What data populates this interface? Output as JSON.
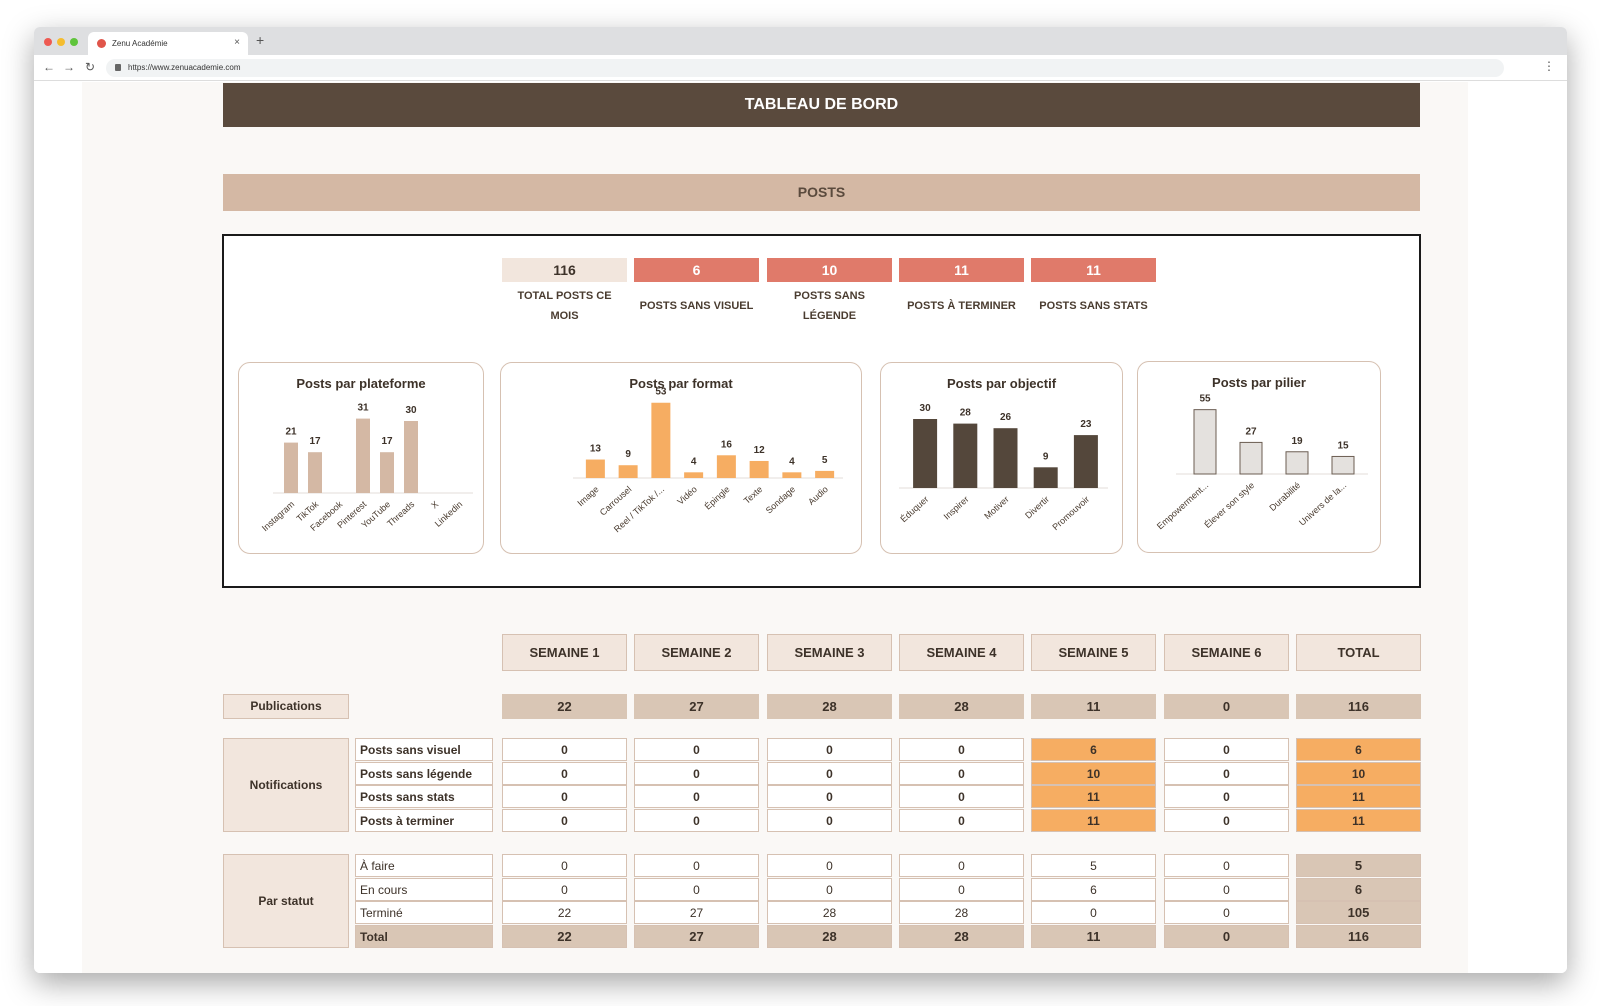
{
  "browser": {
    "tab_title": "Zenu Académie",
    "url": "https://www.zenuacademie.com"
  },
  "header": {
    "title": "TABLEAU DE BORD",
    "section": "POSTS"
  },
  "kpis": [
    {
      "value": "116",
      "label": "TOTAL POSTS CE MOIS",
      "color": "#f2e6dd",
      "text_color": "#3d3229"
    },
    {
      "value": "6",
      "label": "POSTS SANS VISUEL",
      "color": "#e07a6a",
      "text_color": "#ffffff"
    },
    {
      "value": "10",
      "label": "POSTS SANS LÉGENDE",
      "color": "#e07a6a",
      "text_color": "#ffffff"
    },
    {
      "value": "11",
      "label": "POSTS À TERMINER",
      "color": "#e07a6a",
      "text_color": "#ffffff"
    },
    {
      "value": "11",
      "label": "POSTS SANS STATS",
      "color": "#e07a6a",
      "text_color": "#ffffff"
    }
  ],
  "chart_data": [
    {
      "type": "bar",
      "title": "Posts par plateforme",
      "color": "#d4b8a4",
      "categories": [
        "Instagram",
        "TikTok",
        "Facebook",
        "Pinterest",
        "YouTube",
        "Threads",
        "X",
        "Linkedin"
      ],
      "values": [
        21,
        17,
        null,
        31,
        17,
        30,
        null,
        null
      ]
    },
    {
      "type": "bar",
      "title": "Posts par format",
      "color": "#f6ad62",
      "categories": [
        "Image",
        "Carrousel",
        "Reel / TikTok /...",
        "Vidéo",
        "Épingle",
        "Texte",
        "Sondage",
        "Audio"
      ],
      "values": [
        13,
        9,
        53,
        4,
        16,
        12,
        4,
        5
      ]
    },
    {
      "type": "bar",
      "title": "Posts par objectif",
      "color": "#54473b",
      "categories": [
        "Éduquer",
        "Inspirer",
        "Motiver",
        "Divertir",
        "Promouvoir"
      ],
      "values": [
        30,
        28,
        26,
        9,
        23
      ]
    },
    {
      "type": "bar",
      "title": "Posts par pilier",
      "color": "#e4e1de",
      "categories": [
        "Empowerment...",
        "Élever son style",
        "Durabilité",
        "Univers de la..."
      ],
      "values": [
        55,
        27,
        19,
        15
      ]
    }
  ],
  "table": {
    "weeks": [
      "SEMAINE 1",
      "SEMAINE 2",
      "SEMAINE 3",
      "SEMAINE 4",
      "SEMAINE 5",
      "SEMAINE 6",
      "TOTAL"
    ],
    "publications_label": "Publications",
    "publications": [
      "22",
      "27",
      "28",
      "28",
      "11",
      "0",
      "116"
    ],
    "notifications_label": "Notifications",
    "notifications": [
      {
        "label": "Posts sans visuel",
        "values": [
          "0",
          "0",
          "0",
          "0",
          "6",
          "0",
          "6"
        ]
      },
      {
        "label": "Posts sans légende",
        "values": [
          "0",
          "0",
          "0",
          "0",
          "10",
          "0",
          "10"
        ]
      },
      {
        "label": "Posts sans stats",
        "values": [
          "0",
          "0",
          "0",
          "0",
          "11",
          "0",
          "11"
        ]
      },
      {
        "label": "Posts à terminer",
        "values": [
          "0",
          "0",
          "0",
          "0",
          "11",
          "0",
          "11"
        ]
      }
    ],
    "status_label": "Par statut",
    "status": [
      {
        "label": "À faire",
        "values": [
          "0",
          "0",
          "0",
          "0",
          "5",
          "0",
          "5"
        ]
      },
      {
        "label": "En cours",
        "values": [
          "0",
          "0",
          "0",
          "0",
          "6",
          "0",
          "6"
        ]
      },
      {
        "label": "Terminé",
        "values": [
          "22",
          "27",
          "28",
          "28",
          "0",
          "0",
          "105"
        ]
      },
      {
        "label": "Total",
        "values": [
          "22",
          "27",
          "28",
          "28",
          "11",
          "0",
          "116"
        ]
      }
    ]
  }
}
